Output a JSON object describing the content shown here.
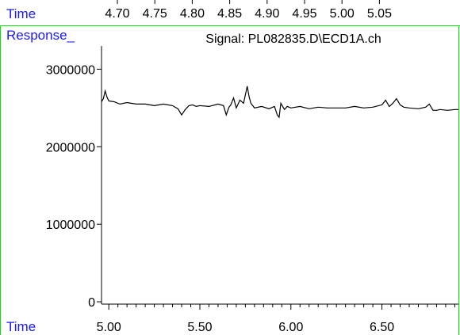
{
  "top_panel": {
    "time_label": "Time",
    "ticks": [
      "4.70",
      "4.75",
      "4.80",
      "4.85",
      "4.90",
      "4.95",
      "5.00",
      "5.05"
    ]
  },
  "panel": {
    "response_label": "Response_",
    "time_label": "Time",
    "colors": {
      "label": "#1a1aff",
      "frame": "#00ee00",
      "trace": "#000000"
    }
  },
  "chart_data": {
    "type": "line",
    "title": "Signal: PL082835.D\\ECD1A.ch",
    "xlabel": "Time",
    "ylabel": "Response_",
    "xlim": [
      4.96,
      6.92
    ],
    "ylim": [
      -30000,
      3300000
    ],
    "x_ticks": [
      5.0,
      5.5,
      6.0,
      6.5
    ],
    "x_tick_labels": [
      "5.00",
      "5.50",
      "6.00",
      "6.50"
    ],
    "y_ticks": [
      0,
      1000000,
      2000000,
      3000000
    ],
    "y_tick_labels": [
      "0",
      "1000000",
      "2000000",
      "3000000"
    ],
    "grid": false,
    "series": [
      {
        "x": [
          4.96,
          4.97,
          4.98,
          4.99,
          5.0,
          5.03,
          5.06,
          5.1,
          5.15,
          5.2,
          5.25,
          5.3,
          5.35,
          5.38,
          5.4,
          5.42,
          5.44,
          5.46,
          5.48,
          5.5,
          5.55,
          5.6,
          5.63,
          5.645,
          5.66,
          5.67,
          5.685,
          5.7,
          5.72,
          5.74,
          5.76,
          5.77,
          5.78,
          5.8,
          5.84,
          5.88,
          5.91,
          5.925,
          5.935,
          5.945,
          5.955,
          5.965,
          5.98,
          6.0,
          6.05,
          6.1,
          6.15,
          6.2,
          6.3,
          6.35,
          6.4,
          6.45,
          6.5,
          6.52,
          6.54,
          6.56,
          6.58,
          6.6,
          6.62,
          6.65,
          6.7,
          6.74,
          6.76,
          6.78,
          6.8,
          6.82,
          6.86,
          6.9,
          6.92
        ],
        "y": [
          2580000,
          2620000,
          2720000,
          2640000,
          2590000,
          2580000,
          2550000,
          2570000,
          2550000,
          2550000,
          2530000,
          2550000,
          2530000,
          2490000,
          2410000,
          2480000,
          2530000,
          2540000,
          2520000,
          2530000,
          2520000,
          2550000,
          2530000,
          2410000,
          2510000,
          2540000,
          2630000,
          2500000,
          2600000,
          2560000,
          2780000,
          2650000,
          2560000,
          2500000,
          2520000,
          2490000,
          2520000,
          2410000,
          2380000,
          2560000,
          2520000,
          2480000,
          2520000,
          2500000,
          2520000,
          2490000,
          2510000,
          2500000,
          2500000,
          2520000,
          2500000,
          2510000,
          2540000,
          2600000,
          2520000,
          2560000,
          2620000,
          2540000,
          2510000,
          2500000,
          2490000,
          2510000,
          2550000,
          2470000,
          2470000,
          2480000,
          2470000,
          2480000,
          2480000
        ]
      }
    ]
  }
}
